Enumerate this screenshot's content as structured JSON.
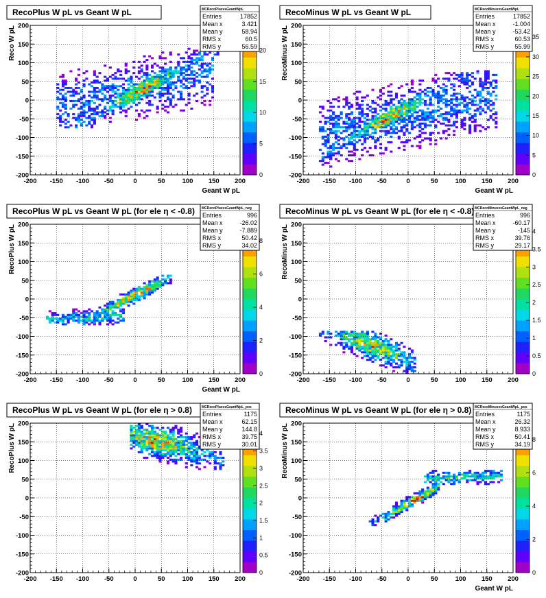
{
  "chart_data": [
    {
      "type": "heatmap",
      "title": "RecoPlus W pL vs Geant W pL",
      "xlabel": "Geant W pL",
      "ylabel": "Reco W pL",
      "xlim": [
        -200,
        200
      ],
      "ylim": [
        -200,
        200
      ],
      "x_ticks": [
        "-200",
        "-150",
        "-100",
        "-50",
        "0",
        "50",
        "100",
        "150",
        "200"
      ],
      "y_ticks": [
        "-200",
        "-150",
        "-100",
        "-50",
        "0",
        "50",
        "100",
        "150",
        "200"
      ],
      "z_ticks": [
        "0",
        "5",
        "10",
        "15",
        "20"
      ],
      "zmax": 24,
      "grid": true,
      "stats": {
        "name": "MCRecoPlusvsGeantWpL",
        "rows": [
          [
            "Entries",
            "17852"
          ],
          [
            "Mean x",
            "3.421"
          ],
          [
            "Mean y",
            "58.94"
          ],
          [
            "RMS x",
            "60.5"
          ],
          [
            "RMS y",
            "56.59"
          ]
        ]
      },
      "blobs": [
        {
          "x": [
            -150,
            160
          ],
          "y": [
            -75,
            175
          ],
          "slope": 0.75,
          "offset": 20,
          "spread": 20,
          "weight": 1.0,
          "peak": [
            20,
            20
          ]
        },
        {
          "x": [
            -150,
            150
          ],
          "y": [
            -60,
            190
          ],
          "slope": 0.3,
          "offset": 30,
          "spread": 50,
          "weight": 0.35
        }
      ]
    },
    {
      "type": "heatmap",
      "title": "RecoMinus W pL vs Geant W pL",
      "xlabel": "Geant W pL",
      "ylabel": "RecoMinus W pL",
      "xlim": [
        -200,
        200
      ],
      "ylim": [
        -200,
        200
      ],
      "x_ticks": [
        "-200",
        "-150",
        "-100",
        "-50",
        "0",
        "50",
        "100",
        "150",
        "200"
      ],
      "y_ticks": [
        "-200",
        "-150",
        "-100",
        "-50",
        "0",
        "50",
        "100",
        "150",
        "200"
      ],
      "z_ticks": [
        "0",
        "5",
        "10",
        "15",
        "20",
        "25",
        "30",
        "35"
      ],
      "zmax": 38,
      "grid": true,
      "stats": {
        "name": "MCRecoMinusvsGeantWpL",
        "rows": [
          [
            "Entries",
            "17852"
          ],
          [
            "Mean x",
            "-1.004"
          ],
          [
            "Mean y",
            "-53.42"
          ],
          [
            "RMS x",
            "60.53"
          ],
          [
            "RMS y",
            "55.99"
          ]
        ]
      },
      "blobs": [
        {
          "x": [
            -165,
            150
          ],
          "y": [
            -200,
            75
          ],
          "slope": 0.75,
          "offset": -20,
          "spread": 20,
          "weight": 1.0,
          "peak": [
            -45,
            -30
          ]
        },
        {
          "x": [
            -170,
            170
          ],
          "y": [
            -200,
            80
          ],
          "slope": 0.3,
          "offset": -40,
          "spread": 55,
          "weight": 0.35
        }
      ]
    },
    {
      "type": "heatmap",
      "title": "RecoPlus W pL vs Geant W pL (for ele η < -0.8)",
      "xlabel": "Geant W pL",
      "ylabel": "RecoPlus W pL",
      "xlim": [
        -200,
        200
      ],
      "ylim": [
        -200,
        200
      ],
      "x_ticks": [
        "-200",
        "-150",
        "-100",
        "-50",
        "0",
        "50",
        "100",
        "150",
        "200"
      ],
      "y_ticks": [
        "-200",
        "-150",
        "-100",
        "-50",
        "0",
        "50",
        "100",
        "150",
        "200"
      ],
      "z_ticks": [
        "0",
        "2",
        "4",
        "6",
        "8"
      ],
      "zmax": 9,
      "grid": true,
      "stats": {
        "name": "MCRecoPlusvsGeantWpL_neg",
        "rows": [
          [
            "Entries",
            "996"
          ],
          [
            "Mean x",
            "-26.02"
          ],
          [
            "Mean y",
            "-7.889"
          ],
          [
            "RMS x",
            "50.42"
          ],
          [
            "RMS y",
            "34.02"
          ]
        ]
      },
      "blobs": [
        {
          "x": [
            -160,
            70
          ],
          "y": [
            -70,
            75
          ],
          "slope": 0.75,
          "offset": 10,
          "spread": 12,
          "weight": 1.0,
          "peak": [
            0,
            10
          ]
        },
        {
          "x": [
            -170,
            -20
          ],
          "y": [
            -70,
            -20
          ],
          "slope": 0.05,
          "offset": -45,
          "spread": 12,
          "weight": 0.55
        }
      ]
    },
    {
      "type": "heatmap",
      "title": "RecoMinus W pL vs Geant W pL (for ele η < -0.8)",
      "xlabel": "",
      "ylabel": "RecoMinus W pL",
      "xlim": [
        -200,
        200
      ],
      "ylim": [
        -200,
        200
      ],
      "x_ticks": [
        "-200",
        "-150",
        "-100",
        "-50",
        "0",
        "50",
        "100",
        "150",
        "200"
      ],
      "y_ticks": [
        "-200",
        "-150",
        "-100",
        "-50",
        "0",
        "50",
        "100",
        "150",
        "200"
      ],
      "z_ticks": [
        "0",
        "0.5",
        "1",
        "1.5",
        "2",
        "2.5",
        "3",
        "3.5",
        "4"
      ],
      "zmax": 4.2,
      "grid": true,
      "stats": {
        "name": "MCRecoMinusvsGeantWpL_neg",
        "rows": [
          [
            "Entries",
            "996"
          ],
          [
            "Mean x",
            "-60.17"
          ],
          [
            "Mean y",
            "-145"
          ],
          [
            "RMS x",
            "39.76"
          ],
          [
            "RMS y",
            "29.17"
          ]
        ]
      },
      "blobs": [
        {
          "x": [
            -170,
            15
          ],
          "y": [
            -200,
            -85
          ],
          "slope": -0.6,
          "offset": -170,
          "spread": 25,
          "weight": 1.0,
          "peak": [
            -55,
            -100
          ]
        }
      ]
    },
    {
      "type": "heatmap",
      "title": "RecoPlus W pL vs Geant W pL (for ele η > 0.8)",
      "xlabel": "",
      "ylabel": "RecoPlus W pL",
      "xlim": [
        -200,
        200
      ],
      "ylim": [
        -200,
        200
      ],
      "x_ticks": [
        "-200",
        "-150",
        "-100",
        "-50",
        "0",
        "50",
        "100",
        "150",
        "200"
      ],
      "y_ticks": [
        "-200",
        "-150",
        "-100",
        "-50",
        "0",
        "50",
        "100",
        "150",
        "200"
      ],
      "z_ticks": [
        "0",
        "0.5",
        "1",
        "1.5",
        "2",
        "2.5",
        "3",
        "3.5",
        "4"
      ],
      "zmax": 4.3,
      "grid": true,
      "stats": {
        "name": "MCRecoPlusvsGeantWpL_pos",
        "rows": [
          [
            "Entries",
            "1175"
          ],
          [
            "Mean x",
            "62.15"
          ],
          [
            "Mean y",
            "144.8"
          ],
          [
            "RMS x",
            "39.75"
          ],
          [
            "RMS y",
            "30.01"
          ]
        ]
      },
      "blobs": [
        {
          "x": [
            -10,
            170
          ],
          "y": [
            75,
            200
          ],
          "slope": -0.4,
          "offset": 170,
          "spread": 28,
          "weight": 1.0,
          "peak": [
            40,
            150
          ]
        }
      ]
    },
    {
      "type": "heatmap",
      "title": "RecoMinus W pL vs Geant W pL (for ele η > 0.8)",
      "xlabel": "Geant W pL",
      "ylabel": "RecoMinus W pL",
      "xlim": [
        -200,
        200
      ],
      "ylim": [
        -200,
        200
      ],
      "x_ticks": [
        "-200",
        "-150",
        "-100",
        "-50",
        "0",
        "50",
        "100",
        "150",
        "200"
      ],
      "y_ticks": [
        "-200",
        "-150",
        "-100",
        "-50",
        "0",
        "50",
        "100",
        "150",
        "200"
      ],
      "z_ticks": [
        "0",
        "2",
        "4",
        "6",
        "8"
      ],
      "zmax": 9,
      "grid": true,
      "stats": {
        "name": "MCRecoMinusvsGeantWpL_pos",
        "rows": [
          [
            "Entries",
            "1175"
          ],
          [
            "Mean x",
            "26.32"
          ],
          [
            "Mean y",
            "8.933"
          ],
          [
            "RMS x",
            "50.41"
          ],
          [
            "RMS y",
            "34.19"
          ]
        ]
      },
      "blobs": [
        {
          "x": [
            -75,
            60
          ],
          "y": [
            -75,
            75
          ],
          "slope": 0.8,
          "offset": -15,
          "spread": 10,
          "weight": 1.0,
          "peak": [
            10,
            0
          ]
        },
        {
          "x": [
            30,
            180
          ],
          "y": [
            20,
            75
          ],
          "slope": 0.05,
          "offset": 50,
          "spread": 12,
          "weight": 0.6
        }
      ]
    }
  ],
  "colors": {
    "palette": [
      "#a000c8",
      "#6000ff",
      "#2020ff",
      "#0060ff",
      "#00a0ff",
      "#00d8e8",
      "#00e0a0",
      "#20d860",
      "#60e020",
      "#b0e010",
      "#f0e000",
      "#ffa000",
      "#ff6000",
      "#ff0000"
    ],
    "grid": "#000000",
    "frame": "#000000"
  }
}
